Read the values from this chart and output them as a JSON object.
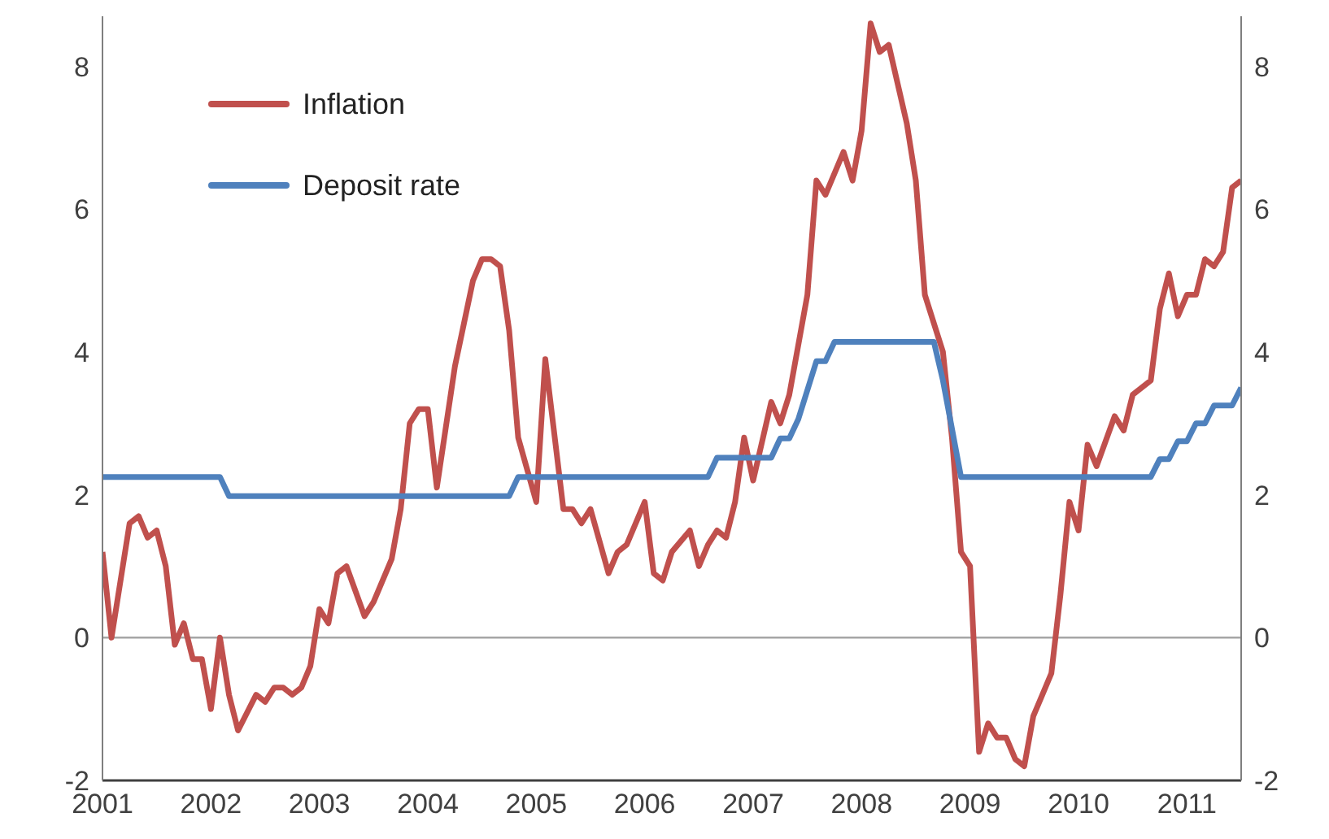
{
  "chart_data": {
    "type": "line",
    "x": [
      "2001-01",
      "2001-02",
      "2001-04",
      "2001-05",
      "2001-06",
      "2001-07",
      "2001-08",
      "2001-09",
      "2001-10",
      "2001-11",
      "2001-12",
      "2002-01",
      "2002-02",
      "2002-03",
      "2002-04",
      "2002-06",
      "2002-07",
      "2002-08",
      "2002-09",
      "2002-10",
      "2002-11",
      "2002-12",
      "2003-01",
      "2003-02",
      "2003-03",
      "2003-04",
      "2003-06",
      "2003-07",
      "2003-09",
      "2003-10",
      "2003-11",
      "2003-12",
      "2004-01",
      "2004-02",
      "2004-04",
      "2004-05",
      "2004-06",
      "2004-07",
      "2004-08",
      "2004-09",
      "2004-10",
      "2004-11",
      "2005-01",
      "2005-02",
      "2005-04",
      "2005-05",
      "2005-06",
      "2005-07",
      "2005-09",
      "2005-10",
      "2005-11",
      "2006-01",
      "2006-02",
      "2006-03",
      "2006-04",
      "2006-06",
      "2006-07",
      "2006-08",
      "2006-09",
      "2006-10",
      "2006-11",
      "2006-12",
      "2007-01",
      "2007-03",
      "2007-04",
      "2007-05",
      "2007-07",
      "2007-08",
      "2007-09",
      "2007-11",
      "2007-12",
      "2008-01",
      "2008-02",
      "2008-03",
      "2008-04",
      "2008-06",
      "2008-07",
      "2008-08",
      "2008-10",
      "2008-11",
      "2008-12",
      "2009-01",
      "2009-02",
      "2009-03",
      "2009-04",
      "2009-05",
      "2009-06",
      "2009-07",
      "2009-08",
      "2009-09",
      "2009-10",
      "2009-11",
      "2009-12",
      "2010-01",
      "2010-02",
      "2010-03",
      "2010-05",
      "2010-06",
      "2010-07",
      "2010-08",
      "2010-09",
      "2010-10",
      "2010-11",
      "2010-12",
      "2011-01",
      "2011-02",
      "2011-03",
      "2011-04",
      "2011-05",
      "2011-06",
      "2011-07"
    ],
    "series": [
      {
        "name": "Inflation",
        "color": "#c0504d",
        "values": [
          1.2,
          0.0,
          1.6,
          1.7,
          1.4,
          1.5,
          1.0,
          -0.1,
          0.2,
          -0.3,
          -0.3,
          -1.0,
          0.0,
          -0.8,
          -1.3,
          -0.8,
          -0.9,
          -0.7,
          -0.7,
          -0.8,
          -0.7,
          -0.4,
          0.4,
          0.2,
          0.9,
          1.0,
          0.3,
          0.5,
          1.1,
          1.8,
          3.0,
          3.2,
          3.2,
          2.1,
          3.8,
          4.4,
          5.0,
          5.3,
          5.3,
          5.2,
          4.3,
          2.8,
          1.9,
          3.9,
          1.8,
          1.8,
          1.6,
          1.8,
          0.9,
          1.2,
          1.3,
          1.9,
          0.9,
          0.8,
          1.2,
          1.5,
          1.0,
          1.3,
          1.5,
          1.4,
          1.9,
          2.8,
          2.2,
          3.3,
          3.0,
          3.4,
          4.8,
          6.4,
          6.2,
          6.8,
          6.4,
          7.1,
          8.6,
          8.2,
          8.3,
          7.2,
          6.4,
          4.8,
          4.0,
          2.8,
          1.2,
          1.0,
          -1.6,
          -1.2,
          -1.4,
          -1.4,
          -1.7,
          -1.8,
          -1.1,
          -0.8,
          -0.5,
          0.6,
          1.9,
          1.5,
          2.7,
          2.4,
          3.1,
          2.9,
          3.4,
          3.5,
          3.6,
          4.6,
          5.1,
          4.5,
          4.8,
          4.8,
          5.3,
          5.2,
          5.4,
          6.3,
          6.4
        ]
      },
      {
        "name": "Deposit rate",
        "color": "#4f81bd",
        "x": [
          "2001-01",
          "2002-02",
          "2002-03",
          "2004-10",
          "2004-11",
          "2006-08",
          "2006-09",
          "2007-03",
          "2007-04",
          "2007-05",
          "2007-06",
          "2007-08",
          "2007-09",
          "2007-10",
          "2008-09",
          "2008-10",
          "2008-12",
          "2010-09",
          "2010-10",
          "2010-11",
          "2010-12",
          "2011-01",
          "2011-02",
          "2011-03",
          "2011-04",
          "2011-06",
          "2011-07"
        ],
        "values": [
          2.25,
          2.25,
          1.98,
          1.98,
          2.25,
          2.25,
          2.52,
          2.52,
          2.79,
          2.79,
          3.06,
          3.87,
          3.87,
          4.14,
          4.14,
          3.6,
          2.25,
          2.25,
          2.5,
          2.5,
          2.75,
          2.75,
          3.0,
          3.0,
          3.25,
          3.25,
          3.5
        ]
      }
    ],
    "xlim": [
      "2001-01",
      "2011-07"
    ],
    "xticks": [
      {
        "value": "2001",
        "label": "2001"
      },
      {
        "value": "2002",
        "label": "2002"
      },
      {
        "value": "2003",
        "label": "2003"
      },
      {
        "value": "2004",
        "label": "2004"
      },
      {
        "value": "2005",
        "label": "2005"
      },
      {
        "value": "2006",
        "label": "2006"
      },
      {
        "value": "2007",
        "label": "2007"
      },
      {
        "value": "2008",
        "label": "2008"
      },
      {
        "value": "2009",
        "label": "2009"
      },
      {
        "value": "2010",
        "label": "2010"
      },
      {
        "value": "2011",
        "label": "2011"
      }
    ],
    "ylim": [
      -2,
      8.7
    ],
    "yticks": [
      -2,
      0,
      2,
      4,
      6,
      8
    ],
    "y2lim": [
      -2,
      8.7
    ],
    "y2ticks": [
      -2,
      0,
      2,
      4,
      6,
      8
    ],
    "ref_lines": [
      {
        "axis": "y",
        "value": 0,
        "color": "#a6a6a6"
      }
    ],
    "grid": false,
    "legend": "top left",
    "marker": "none",
    "line_style": "solid"
  }
}
